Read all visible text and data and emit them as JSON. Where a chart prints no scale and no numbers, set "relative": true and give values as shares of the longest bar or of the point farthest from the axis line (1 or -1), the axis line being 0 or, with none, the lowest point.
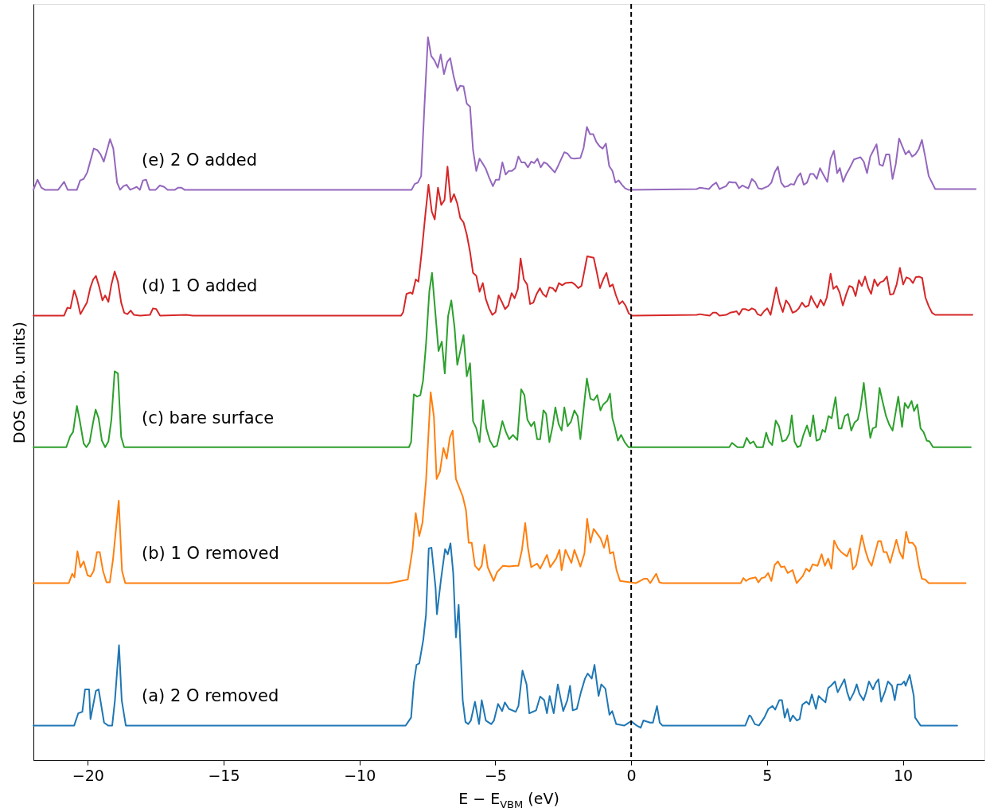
{
  "chart_data": {
    "type": "line",
    "relative": true,
    "xlabel": "E − E$_{VBM}$ (eV)",
    "ylabel": "DOS (arb. units)",
    "xlim": [
      -22,
      13
    ],
    "xticks": [
      {
        "value": -20,
        "label": "−20"
      },
      {
        "value": -15,
        "label": "−15"
      },
      {
        "value": -10,
        "label": "−10"
      },
      {
        "value": -5,
        "label": "−5"
      },
      0,
      5,
      10
    ],
    "grid": false,
    "ref_lines": [
      {
        "axis": "x",
        "value": 0,
        "color": "#000000",
        "line_style": "dashed"
      }
    ],
    "series": [
      {
        "name": "(a) 2 O removed",
        "color": "#1f77b4",
        "x": [
          -22.0,
          -20.5,
          -20.35,
          -20.2,
          -20.1,
          -19.95,
          -19.9,
          -19.7,
          -19.6,
          -19.4,
          -19.25,
          -19.1,
          -19.0,
          -18.85,
          -18.75,
          -18.6,
          -8.3,
          -8.1,
          -8.0,
          -7.9,
          -7.8,
          -7.65,
          -7.55,
          -7.45,
          -7.35,
          -7.2,
          -7.15,
          -7.0,
          -6.85,
          -6.75,
          -6.65,
          -6.55,
          -6.45,
          -6.35,
          -6.2,
          -6.1,
          -6.0,
          -5.9,
          -5.75,
          -5.6,
          -5.5,
          -5.35,
          -5.15,
          -5.05,
          -4.9,
          -4.75,
          -4.65,
          -4.5,
          -4.25,
          -4.15,
          -4.0,
          -3.85,
          -3.75,
          -3.5,
          -3.35,
          -3.2,
          -3.1,
          -3.0,
          -2.85,
          -2.7,
          -2.6,
          -2.5,
          -2.35,
          -2.25,
          -2.15,
          -2.0,
          -1.85,
          -1.7,
          -1.6,
          -1.45,
          -1.35,
          -1.2,
          -1.1,
          -0.95,
          -0.8,
          -0.7,
          -0.55,
          -0.25,
          0.0,
          0.2,
          0.35,
          0.45,
          0.7,
          0.8,
          0.95,
          1.05,
          1.15,
          4.2,
          4.35,
          4.4,
          4.55,
          4.7,
          4.9,
          5.05,
          5.2,
          5.3,
          5.45,
          5.55,
          5.65,
          5.75,
          5.85,
          5.95,
          6.1,
          6.2,
          6.3,
          6.45,
          6.55,
          6.65,
          6.8,
          6.9,
          7.0,
          7.15,
          7.25,
          7.35,
          7.5,
          7.6,
          7.85,
          7.95,
          8.05,
          8.2,
          8.3,
          8.4,
          8.55,
          8.65,
          8.75,
          8.9,
          9.0,
          9.1,
          9.2,
          9.35,
          9.45,
          9.6,
          9.7,
          9.8,
          9.95,
          10.05,
          10.1,
          10.25,
          10.4,
          10.45,
          10.65,
          12.0
        ],
        "values": [
          0.048,
          0.048,
          0.065,
          0.067,
          0.098,
          0.098,
          0.057,
          0.096,
          0.098,
          0.052,
          0.048,
          0.048,
          0.083,
          0.159,
          0.083,
          0.048,
          0.048,
          0.059,
          0.107,
          0.132,
          0.134,
          0.167,
          0.202,
          0.293,
          0.294,
          0.239,
          0.202,
          0.25,
          0.292,
          0.285,
          0.3,
          0.259,
          0.17,
          0.215,
          0.083,
          0.053,
          0.05,
          0.055,
          0.081,
          0.05,
          0.083,
          0.055,
          0.05,
          0.055,
          0.078,
          0.068,
          0.08,
          0.071,
          0.067,
          0.075,
          0.124,
          0.105,
          0.065,
          0.069,
          0.088,
          0.083,
          0.065,
          0.089,
          0.065,
          0.105,
          0.086,
          0.068,
          0.083,
          0.103,
          0.069,
          0.071,
          0.094,
          0.113,
          0.12,
          0.113,
          0.132,
          0.089,
          0.105,
          0.099,
          0.063,
          0.068,
          0.05,
          0.048,
          0.054,
          0.048,
          0.045,
          0.055,
          0.052,
          0.052,
          0.075,
          0.052,
          0.048,
          0.048,
          0.062,
          0.061,
          0.05,
          0.048,
          0.059,
          0.071,
          0.075,
          0.07,
          0.083,
          0.083,
          0.059,
          0.071,
          0.054,
          0.062,
          0.055,
          0.057,
          0.077,
          0.081,
          0.077,
          0.091,
          0.071,
          0.089,
          0.085,
          0.08,
          0.1,
          0.103,
          0.109,
          0.094,
          0.112,
          0.094,
          0.083,
          0.094,
          0.105,
          0.092,
          0.083,
          0.094,
          0.109,
          0.098,
          0.107,
          0.112,
          0.081,
          0.096,
          0.109,
          0.103,
          0.083,
          0.105,
          0.105,
          0.109,
          0.103,
          0.118,
          0.089,
          0.059,
          0.048,
          0.048
        ]
      },
      {
        "name": "(b) 1 O removed",
        "color": "#ff7f0e",
        "x": [
          -22.0,
          -20.7,
          -20.57,
          -20.49,
          -20.38,
          -20.27,
          -20.15,
          -20.01,
          -19.9,
          -19.78,
          -19.66,
          -19.56,
          -19.44,
          -19.31,
          -19.19,
          -19.07,
          -18.86,
          -18.74,
          -18.62,
          -8.89,
          -8.22,
          -8.05,
          -7.93,
          -7.8,
          -7.68,
          -7.55,
          -7.38,
          -7.26,
          -7.16,
          -7.04,
          -6.91,
          -6.79,
          -6.67,
          -6.57,
          -6.45,
          -6.2,
          -6.08,
          -5.98,
          -5.87,
          -5.75,
          -5.61,
          -5.5,
          -5.4,
          -5.28,
          -5.06,
          -4.94,
          -4.72,
          -4.49,
          -4.27,
          -4.15,
          -4.02,
          -3.9,
          -3.8,
          -3.68,
          -3.46,
          -3.35,
          -3.1,
          -2.98,
          -2.76,
          -2.64,
          -2.56,
          -2.42,
          -2.2,
          -2.09,
          -1.87,
          -1.72,
          -1.62,
          -1.5,
          -1.38,
          -1.13,
          -1.0,
          -0.88,
          -0.78,
          -0.66,
          -0.54,
          -0.41,
          0.18,
          0.47,
          0.59,
          0.7,
          0.92,
          1.04,
          1.15,
          4.03,
          4.13,
          4.23,
          4.35,
          4.58,
          4.68,
          4.8,
          4.92,
          5.04,
          5.16,
          5.28,
          5.4,
          5.52,
          5.64,
          5.76,
          5.94,
          6.09,
          6.32,
          6.44,
          6.56,
          6.68,
          6.86,
          7.01,
          7.13,
          7.25,
          7.37,
          7.47,
          7.61,
          7.73,
          7.94,
          8.06,
          8.16,
          8.28,
          8.49,
          8.62,
          8.74,
          8.85,
          9.09,
          9.19,
          9.29,
          9.4,
          9.53,
          9.76,
          9.88,
          10.0,
          10.12,
          10.22,
          10.35,
          10.47,
          10.59,
          10.7,
          10.82,
          10.95,
          12.31
        ],
        "values": [
          0.245,
          0.245,
          0.258,
          0.253,
          0.289,
          0.267,
          0.275,
          0.256,
          0.254,
          0.262,
          0.288,
          0.288,
          0.262,
          0.246,
          0.246,
          0.278,
          0.359,
          0.262,
          0.245,
          0.245,
          0.25,
          0.291,
          0.342,
          0.31,
          0.329,
          0.387,
          0.509,
          0.475,
          0.389,
          0.399,
          0.432,
          0.417,
          0.447,
          0.456,
          0.389,
          0.365,
          0.346,
          0.301,
          0.301,
          0.269,
          0.263,
          0.269,
          0.298,
          0.267,
          0.248,
          0.26,
          0.269,
          0.268,
          0.269,
          0.269,
          0.291,
          0.328,
          0.294,
          0.267,
          0.272,
          0.265,
          0.284,
          0.267,
          0.279,
          0.291,
          0.263,
          0.291,
          0.273,
          0.291,
          0.268,
          0.286,
          0.334,
          0.301,
          0.32,
          0.307,
          0.294,
          0.311,
          0.286,
          0.288,
          0.263,
          0.248,
          0.245,
          0.251,
          0.251,
          0.245,
          0.258,
          0.246,
          0.245,
          0.245,
          0.252,
          0.248,
          0.251,
          0.253,
          0.246,
          0.252,
          0.253,
          0.259,
          0.248,
          0.27,
          0.275,
          0.267,
          0.268,
          0.259,
          0.263,
          0.245,
          0.255,
          0.265,
          0.261,
          0.271,
          0.269,
          0.285,
          0.269,
          0.279,
          0.265,
          0.304,
          0.293,
          0.288,
          0.282,
          0.293,
          0.264,
          0.27,
          0.311,
          0.29,
          0.276,
          0.269,
          0.303,
          0.303,
          0.288,
          0.288,
          0.273,
          0.305,
          0.288,
          0.279,
          0.316,
          0.301,
          0.301,
          0.295,
          0.268,
          0.251,
          0.25,
          0.245,
          0.245
        ]
      },
      {
        "name": "(c) bare surface",
        "color": "#2ca02c",
        "x": [
          -22.0,
          -20.79,
          -20.65,
          -20.54,
          -20.4,
          -20.3,
          -20.15,
          -20.05,
          -19.93,
          -19.81,
          -19.71,
          -19.6,
          -19.48,
          -19.36,
          -19.24,
          -19.13,
          -19.01,
          -18.89,
          -18.77,
          -18.66,
          -8.89,
          -8.18,
          -8.1,
          -8.0,
          -7.88,
          -7.76,
          -7.66,
          -7.55,
          -7.43,
          -7.33,
          -7.21,
          -7.09,
          -6.97,
          -6.86,
          -6.74,
          -6.62,
          -6.5,
          -6.4,
          -6.29,
          -6.17,
          -6.05,
          -5.93,
          -5.82,
          -5.7,
          -5.58,
          -5.45,
          -5.33,
          -5.2,
          -5.06,
          -4.94,
          -4.74,
          -4.61,
          -4.49,
          -4.35,
          -4.19,
          -4.05,
          -3.93,
          -3.82,
          -3.68,
          -3.57,
          -3.46,
          -3.35,
          -3.23,
          -3.13,
          -3.01,
          -2.89,
          -2.79,
          -2.67,
          -2.56,
          -2.46,
          -2.34,
          -2.22,
          -2.09,
          -1.97,
          -1.87,
          -1.63,
          -1.5,
          -1.38,
          -1.25,
          -1.13,
          -1.03,
          -0.88,
          -0.78,
          -0.69,
          -0.61,
          -0.49,
          -0.37,
          -0.24,
          -0.1,
          0.18,
          3.61,
          3.71,
          3.91,
          4.13,
          4.25,
          4.38,
          4.5,
          4.62,
          4.85,
          4.97,
          5.07,
          5.19,
          5.32,
          5.44,
          5.56,
          5.7,
          5.82,
          5.91,
          6.01,
          6.12,
          6.23,
          6.34,
          6.47,
          6.59,
          6.7,
          6.82,
          6.94,
          7.04,
          7.14,
          7.26,
          7.38,
          7.52,
          7.64,
          7.74,
          7.86,
          7.98,
          8.1,
          8.22,
          8.34,
          8.44,
          8.56,
          8.68,
          8.8,
          8.89,
          9.01,
          9.14,
          9.26,
          9.38,
          9.5,
          9.62,
          9.83,
          9.97,
          10.07,
          10.19,
          10.32,
          10.41,
          10.53,
          10.65,
          10.76,
          10.88,
          10.98,
          11.11,
          12.5
        ],
        "values": [
          0.433,
          0.433,
          0.448,
          0.454,
          0.49,
          0.471,
          0.438,
          0.433,
          0.44,
          0.466,
          0.485,
          0.473,
          0.442,
          0.433,
          0.441,
          0.471,
          0.538,
          0.535,
          0.447,
          0.433,
          0.433,
          0.433,
          0.44,
          0.506,
          0.503,
          0.505,
          0.525,
          0.576,
          0.648,
          0.674,
          0.62,
          0.566,
          0.579,
          0.535,
          0.614,
          0.636,
          0.598,
          0.547,
          0.566,
          0.588,
          0.531,
          0.549,
          0.469,
          0.459,
          0.44,
          0.498,
          0.459,
          0.442,
          0.433,
          0.435,
          0.469,
          0.454,
          0.444,
          0.45,
          0.443,
          0.513,
          0.505,
          0.471,
          0.462,
          0.468,
          0.444,
          0.444,
          0.484,
          0.479,
          0.44,
          0.462,
          0.488,
          0.465,
          0.456,
          0.488,
          0.462,
          0.468,
          0.484,
          0.476,
          0.444,
          0.528,
          0.5,
          0.498,
          0.505,
          0.484,
          0.492,
          0.497,
          0.507,
          0.473,
          0.462,
          0.442,
          0.45,
          0.44,
          0.433,
          0.433,
          0.433,
          0.439,
          0.433,
          0.433,
          0.446,
          0.438,
          0.441,
          0.433,
          0.433,
          0.453,
          0.441,
          0.436,
          0.47,
          0.462,
          0.441,
          0.443,
          0.452,
          0.477,
          0.441,
          0.433,
          0.435,
          0.45,
          0.463,
          0.448,
          0.477,
          0.442,
          0.444,
          0.457,
          0.454,
          0.476,
          0.473,
          0.502,
          0.459,
          0.459,
          0.476,
          0.479,
          0.456,
          0.467,
          0.471,
          0.487,
          0.522,
          0.48,
          0.446,
          0.459,
          0.461,
          0.515,
          0.495,
          0.476,
          0.464,
          0.456,
          0.503,
          0.461,
          0.494,
          0.487,
          0.497,
          0.483,
          0.492,
          0.459,
          0.454,
          0.442,
          0.441,
          0.433,
          0.433
        ]
      },
      {
        "name": "(d) 1 O added",
        "color": "#d62728",
        "x": [
          -22.0,
          -20.87,
          -20.75,
          -20.64,
          -20.5,
          -20.4,
          -20.27,
          -20.15,
          -20.03,
          -19.91,
          -19.8,
          -19.7,
          -19.58,
          -19.46,
          -19.36,
          -19.24,
          -19.13,
          -19.01,
          -18.89,
          -18.77,
          -18.66,
          -18.54,
          -18.42,
          -18.3,
          -18.07,
          -17.71,
          -17.6,
          -17.48,
          -17.34,
          -16.37,
          -16.13,
          -8.47,
          -8.39,
          -8.27,
          -8.13,
          -8.05,
          -7.93,
          -7.83,
          -7.71,
          -7.58,
          -7.46,
          -7.34,
          -7.23,
          -7.11,
          -6.99,
          -6.87,
          -6.76,
          -6.64,
          -6.52,
          -6.4,
          -6.29,
          -6.17,
          -6.05,
          -5.93,
          -5.82,
          -5.7,
          -5.58,
          -5.46,
          -5.35,
          -5.23,
          -5.11,
          -4.99,
          -4.88,
          -4.76,
          -4.64,
          -4.52,
          -4.4,
          -4.29,
          -4.17,
          -4.07,
          -3.95,
          -3.83,
          -3.72,
          -3.6,
          -3.48,
          -3.36,
          -3.25,
          -3.13,
          -3.01,
          -2.89,
          -2.78,
          -2.66,
          -2.54,
          -2.42,
          -2.19,
          -2.07,
          -1.95,
          -1.83,
          -1.72,
          -1.62,
          -1.38,
          -1.26,
          -1.15,
          -1.03,
          -0.91,
          -0.79,
          -0.68,
          -0.56,
          -0.44,
          -0.32,
          -0.21,
          -0.09,
          0.03,
          2.41,
          2.53,
          2.68,
          2.89,
          3.01,
          3.13,
          3.25,
          3.49,
          3.64,
          3.76,
          3.88,
          3.97,
          4.09,
          4.2,
          4.32,
          4.44,
          4.56,
          4.65,
          4.77,
          4.89,
          5.01,
          5.13,
          5.34,
          5.46,
          5.58,
          5.7,
          5.82,
          5.94,
          6.06,
          6.17,
          6.29,
          6.41,
          6.53,
          6.62,
          6.74,
          6.85,
          6.97,
          7.09,
          7.2,
          7.34,
          7.44,
          7.56,
          7.67,
          7.79,
          7.91,
          8.03,
          8.15,
          8.26,
          8.38,
          8.49,
          8.61,
          8.73,
          8.83,
          8.95,
          9.07,
          9.17,
          9.29,
          9.41,
          9.53,
          9.65,
          9.77,
          9.89,
          10.01,
          10.13,
          10.25,
          10.37,
          10.47,
          10.59,
          10.71,
          10.83,
          10.95,
          11.07,
          11.19,
          12.56
        ],
        "values": [
          0.615,
          0.615,
          0.626,
          0.625,
          0.65,
          0.639,
          0.617,
          0.625,
          0.633,
          0.653,
          0.665,
          0.67,
          0.655,
          0.636,
          0.643,
          0.634,
          0.658,
          0.676,
          0.662,
          0.633,
          0.619,
          0.617,
          0.622,
          0.616,
          0.615,
          0.616,
          0.625,
          0.624,
          0.615,
          0.616,
          0.615,
          0.615,
          0.62,
          0.645,
          0.647,
          0.645,
          0.665,
          0.662,
          0.703,
          0.753,
          0.796,
          0.759,
          0.748,
          0.792,
          0.768,
          0.775,
          0.821,
          0.772,
          0.783,
          0.77,
          0.75,
          0.744,
          0.727,
          0.703,
          0.674,
          0.67,
          0.648,
          0.66,
          0.638,
          0.625,
          0.616,
          0.62,
          0.643,
          0.634,
          0.624,
          0.629,
          0.646,
          0.639,
          0.652,
          0.694,
          0.665,
          0.658,
          0.631,
          0.633,
          0.645,
          0.653,
          0.645,
          0.641,
          0.654,
          0.653,
          0.648,
          0.66,
          0.657,
          0.66,
          0.661,
          0.658,
          0.653,
          0.656,
          0.677,
          0.697,
          0.695,
          0.674,
          0.653,
          0.665,
          0.674,
          0.655,
          0.658,
          0.643,
          0.631,
          0.635,
          0.629,
          0.618,
          0.615,
          0.616,
          0.617,
          0.616,
          0.615,
          0.619,
          0.619,
          0.615,
          0.616,
          0.619,
          0.62,
          0.621,
          0.616,
          0.624,
          0.624,
          0.622,
          0.625,
          0.623,
          0.617,
          0.615,
          0.621,
          0.625,
          0.616,
          0.654,
          0.633,
          0.62,
          0.636,
          0.63,
          0.619,
          0.621,
          0.625,
          0.633,
          0.627,
          0.629,
          0.642,
          0.633,
          0.626,
          0.637,
          0.629,
          0.64,
          0.673,
          0.652,
          0.656,
          0.647,
          0.629,
          0.644,
          0.656,
          0.654,
          0.642,
          0.664,
          0.656,
          0.669,
          0.653,
          0.645,
          0.665,
          0.656,
          0.661,
          0.663,
          0.669,
          0.644,
          0.645,
          0.658,
          0.681,
          0.658,
          0.668,
          0.666,
          0.66,
          0.668,
          0.669,
          0.667,
          0.64,
          0.628,
          0.619,
          0.616,
          0.616
        ]
      },
      {
        "name": "(e) 2 O added",
        "color": "#9467bd",
        "x": [
          -22.0,
          -21.85,
          -21.71,
          -21.58,
          -21.09,
          -20.87,
          -20.74,
          -20.4,
          -20.28,
          -20.15,
          -20.02,
          -19.78,
          -19.65,
          -19.53,
          -19.41,
          -19.29,
          -19.18,
          -19.06,
          -18.92,
          -18.81,
          -18.69,
          -18.57,
          -18.44,
          -18.32,
          -18.2,
          -18.08,
          -17.97,
          -17.85,
          -17.73,
          -17.5,
          -17.35,
          -17.19,
          -17.06,
          -16.79,
          -16.67,
          -16.56,
          -16.44,
          -8.89,
          -8.08,
          -7.97,
          -7.85,
          -7.73,
          -7.61,
          -7.48,
          -7.36,
          -7.24,
          -7.12,
          -7.01,
          -6.89,
          -6.77,
          -6.66,
          -6.54,
          -6.4,
          -6.29,
          -6.17,
          -6.05,
          -5.93,
          -5.82,
          -5.7,
          -5.58,
          -5.46,
          -5.35,
          -5.23,
          -5.09,
          -4.98,
          -4.86,
          -4.74,
          -4.62,
          -4.51,
          -4.39,
          -4.27,
          -4.15,
          -4.04,
          -3.92,
          -3.8,
          -3.68,
          -3.57,
          -3.45,
          -3.33,
          -3.21,
          -3.1,
          -2.98,
          -2.81,
          -2.69,
          -2.57,
          -2.46,
          -2.34,
          -2.22,
          -2.1,
          -1.87,
          -1.75,
          -1.63,
          -1.52,
          -1.4,
          -1.28,
          -1.16,
          -1.05,
          -0.93,
          -0.81,
          -0.69,
          -0.58,
          -0.46,
          -0.34,
          -0.22,
          -0.1,
          2.41,
          2.53,
          2.68,
          2.86,
          3.01,
          3.13,
          3.25,
          3.37,
          3.49,
          3.61,
          3.73,
          3.85,
          3.97,
          4.09,
          4.2,
          4.31,
          4.44,
          4.56,
          4.68,
          4.8,
          4.92,
          5.04,
          5.16,
          5.28,
          5.4,
          5.52,
          5.64,
          5.76,
          5.88,
          5.99,
          6.11,
          6.23,
          6.35,
          6.47,
          6.59,
          6.71,
          6.83,
          6.95,
          7.07,
          7.22,
          7.34,
          7.46,
          7.58,
          7.68,
          7.8,
          7.92,
          8.04,
          8.2,
          8.44,
          8.56,
          8.68,
          8.8,
          8.92,
          9.03,
          9.14,
          9.26,
          9.38,
          9.5,
          9.62,
          9.74,
          9.86,
          9.98,
          10.1,
          10.22,
          10.34,
          10.46,
          10.58,
          10.7,
          10.82,
          10.95,
          11.19,
          12.68
        ],
        "values": [
          0.789,
          0.803,
          0.792,
          0.789,
          0.789,
          0.8,
          0.789,
          0.789,
          0.802,
          0.804,
          0.813,
          0.846,
          0.844,
          0.838,
          0.828,
          0.844,
          0.859,
          0.846,
          0.799,
          0.789,
          0.794,
          0.796,
          0.789,
          0.791,
          0.793,
          0.789,
          0.802,
          0.803,
          0.789,
          0.789,
          0.795,
          0.793,
          0.789,
          0.789,
          0.792,
          0.792,
          0.789,
          0.789,
          0.789,
          0.797,
          0.799,
          0.808,
          0.904,
          1.0,
          0.974,
          0.968,
          0.958,
          0.976,
          0.949,
          0.966,
          0.971,
          0.947,
          0.926,
          0.933,
          0.932,
          0.908,
          0.904,
          0.844,
          0.815,
          0.832,
          0.825,
          0.818,
          0.806,
          0.794,
          0.803,
          0.803,
          0.827,
          0.81,
          0.815,
          0.815,
          0.819,
          0.835,
          0.827,
          0.827,
          0.82,
          0.828,
          0.826,
          0.832,
          0.82,
          0.827,
          0.825,
          0.82,
          0.813,
          0.822,
          0.832,
          0.841,
          0.839,
          0.833,
          0.832,
          0.833,
          0.847,
          0.876,
          0.866,
          0.866,
          0.855,
          0.849,
          0.846,
          0.853,
          0.822,
          0.815,
          0.799,
          0.802,
          0.796,
          0.791,
          0.789,
          0.79,
          0.792,
          0.791,
          0.79,
          0.796,
          0.799,
          0.79,
          0.792,
          0.794,
          0.8,
          0.799,
          0.799,
          0.791,
          0.795,
          0.793,
          0.791,
          0.804,
          0.8,
          0.791,
          0.79,
          0.792,
          0.794,
          0.799,
          0.813,
          0.821,
          0.799,
          0.793,
          0.794,
          0.797,
          0.796,
          0.806,
          0.812,
          0.796,
          0.799,
          0.811,
          0.811,
          0.804,
          0.819,
          0.81,
          0.8,
          0.832,
          0.843,
          0.812,
          0.819,
          0.8,
          0.811,
          0.819,
          0.831,
          0.834,
          0.828,
          0.812,
          0.835,
          0.844,
          0.852,
          0.824,
          0.822,
          0.838,
          0.838,
          0.804,
          0.825,
          0.86,
          0.849,
          0.838,
          0.843,
          0.835,
          0.838,
          0.845,
          0.858,
          0.835,
          0.808,
          0.79,
          0.79
        ]
      }
    ]
  }
}
